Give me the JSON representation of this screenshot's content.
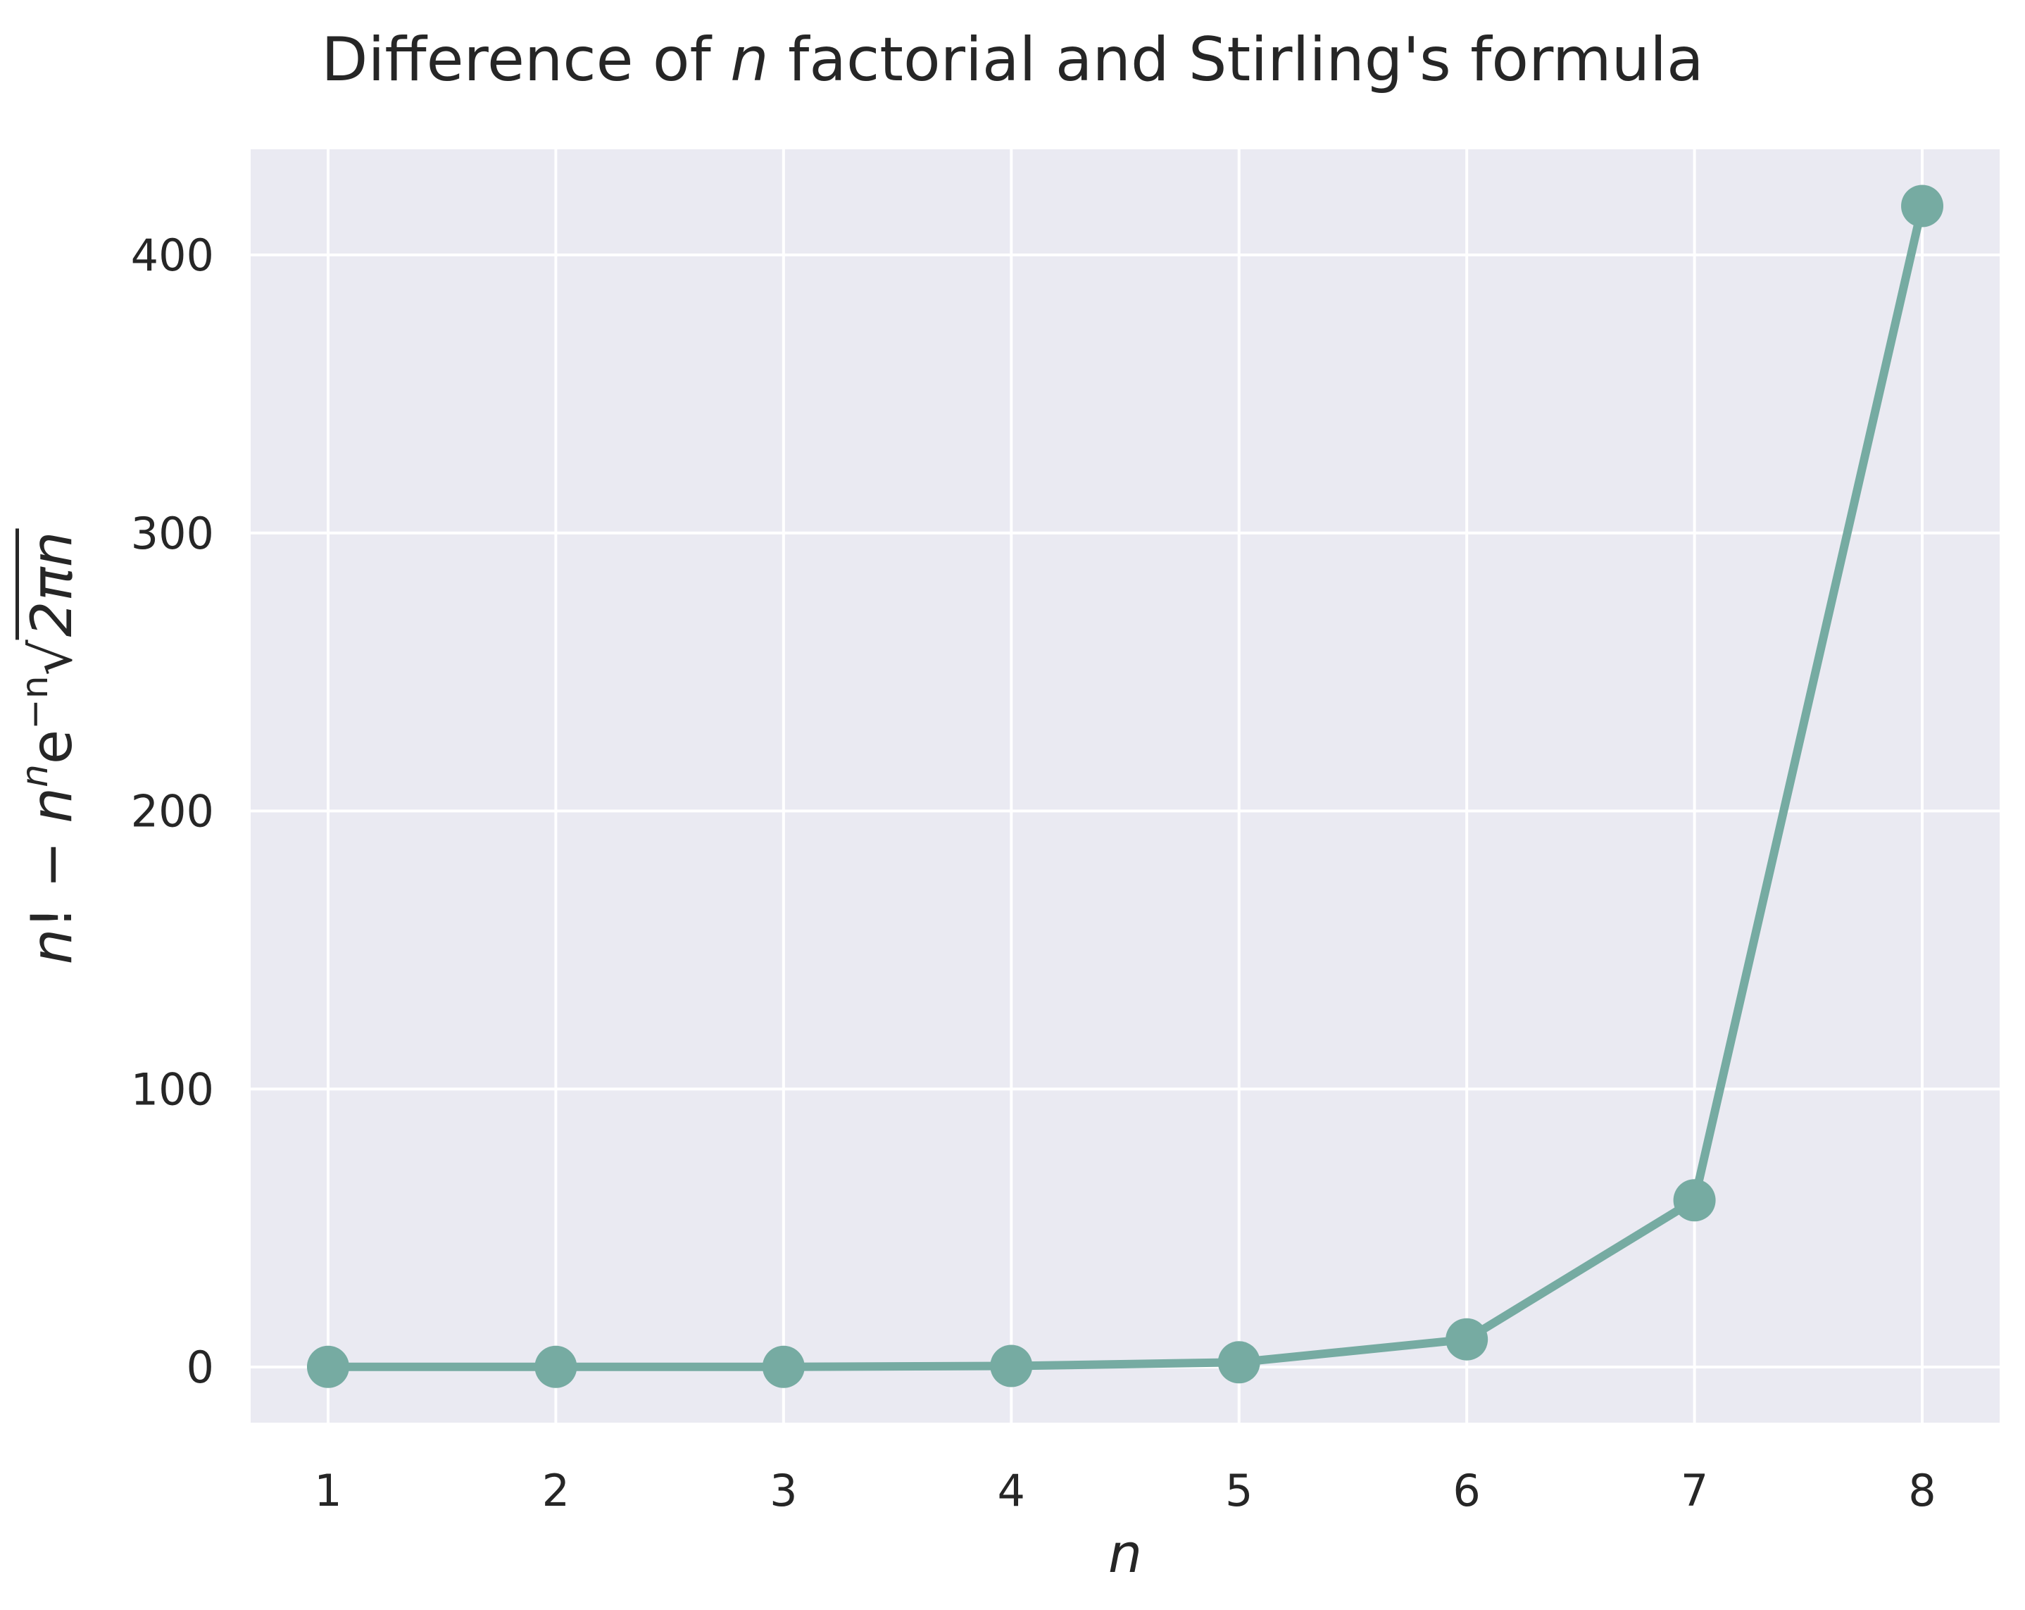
{
  "chart_data": {
    "type": "line",
    "title": {
      "prefix": "Difference of ",
      "italic": "n",
      "suffix": " factorial and Stirling's formula"
    },
    "xlabel": "n",
    "ylabel": {
      "n1": "n",
      "bang": "! − ",
      "n2": "n",
      "sup1": "n",
      "e": "e",
      "sup2": "−n",
      "sqrt": "√",
      "rad": "2πn"
    },
    "x": [
      1,
      2,
      3,
      4,
      5,
      6,
      7,
      8
    ],
    "values": [
      0.0779,
      0.081,
      0.0818,
      0.391,
      1.7097,
      9.9657,
      59.9836,
      417.6045
    ],
    "xlim": [
      0.66,
      8.34
    ],
    "ylim": [
      -20,
      438
    ],
    "xticks": [
      1,
      2,
      3,
      4,
      5,
      6,
      7,
      8
    ],
    "yticks": [
      0,
      100,
      200,
      300,
      400
    ],
    "grid": true,
    "colors": {
      "series": "#76aba2",
      "plot_bg": "#eaeaf2",
      "grid": "#ffffff"
    }
  }
}
